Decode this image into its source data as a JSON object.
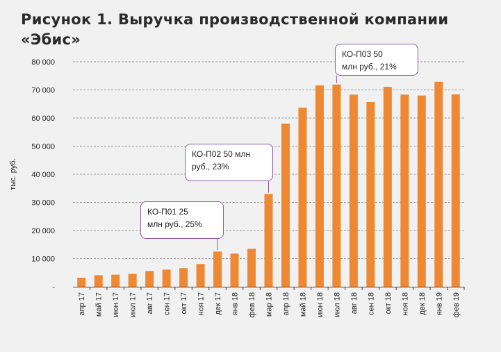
{
  "title_lines": [
    "Рисунок 1. Выручка производственной компании",
    "«Эбис»"
  ],
  "colors": {
    "bar": "#ee8833",
    "annotation_border": "#8a5aa6",
    "background": "#f1f1f1"
  },
  "chart_data": {
    "type": "bar",
    "title": "Рисунок 1. Выручка производственной компании «Эбис»",
    "ylabel": "тыс. руб.",
    "xlabel": "",
    "ylim": [
      0,
      80000
    ],
    "yticks": [
      {
        "value": 0,
        "label": "-"
      },
      {
        "value": 10000,
        "label": "10 000"
      },
      {
        "value": 20000,
        "label": "20 000"
      },
      {
        "value": 30000,
        "label": "30 000"
      },
      {
        "value": 40000,
        "label": "40 000"
      },
      {
        "value": 50000,
        "label": "50 000"
      },
      {
        "value": 60000,
        "label": "60 000"
      },
      {
        "value": 70000,
        "label": "70 000"
      },
      {
        "value": 80000,
        "label": "80 000"
      }
    ],
    "grid": true,
    "categories": [
      "апр 17",
      "май 17",
      "июн 17",
      "июл 17",
      "авг 17",
      "сен 17",
      "окт 17",
      "ноя 17",
      "дек 17",
      "янв 18",
      "фев 18",
      "мар 18",
      "апр 18",
      "май 18",
      "июн 18",
      "июл 18",
      "авг 18",
      "сен 18",
      "окт 18",
      "ноя 18",
      "дек 18",
      "янв 19",
      "фев 19"
    ],
    "values": [
      3200,
      4100,
      4300,
      4600,
      5600,
      6100,
      6600,
      8100,
      12500,
      11800,
      13500,
      33000,
      58000,
      63700,
      71600,
      71900,
      68300,
      65700,
      71100,
      68300,
      68000,
      72900,
      68400
    ],
    "annotations": [
      {
        "lines": [
          "КО-П01  25",
          "млн руб., 25%"
        ],
        "category": "дек 17"
      },
      {
        "lines": [
          "КО-П02 50 млн",
          "руб., 23%"
        ],
        "category": "мар 18"
      },
      {
        "lines": [
          "КО-П03 50",
          "млн руб., 21%"
        ],
        "category": "июл 18"
      }
    ]
  }
}
